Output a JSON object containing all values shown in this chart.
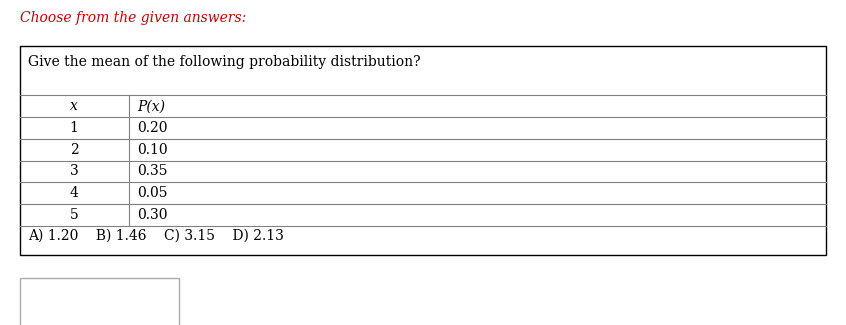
{
  "title_top": "Choose from the given answers:",
  "title_top_color": "#cc0000",
  "question": "Give the mean of the following probability distribution?",
  "col_headers": [
    "x",
    "P(x)"
  ],
  "rows": [
    [
      "1",
      "0.20"
    ],
    [
      "2",
      "0.10"
    ],
    [
      "3",
      "0.35"
    ],
    [
      "4",
      "0.05"
    ],
    [
      "5",
      "0.30"
    ]
  ],
  "answers": "A) 1.20    B) 1.46    C) 3.15    D) 2.13",
  "outer_box_color": "#000000",
  "table_line_color": "#808080",
  "bg_color": "#ffffff",
  "text_color": "#000000",
  "font_size_top": 10,
  "font_size_question": 10,
  "font_size_table": 10,
  "font_size_answers": 10,
  "small_box_edge_color": "#aaaaaa"
}
